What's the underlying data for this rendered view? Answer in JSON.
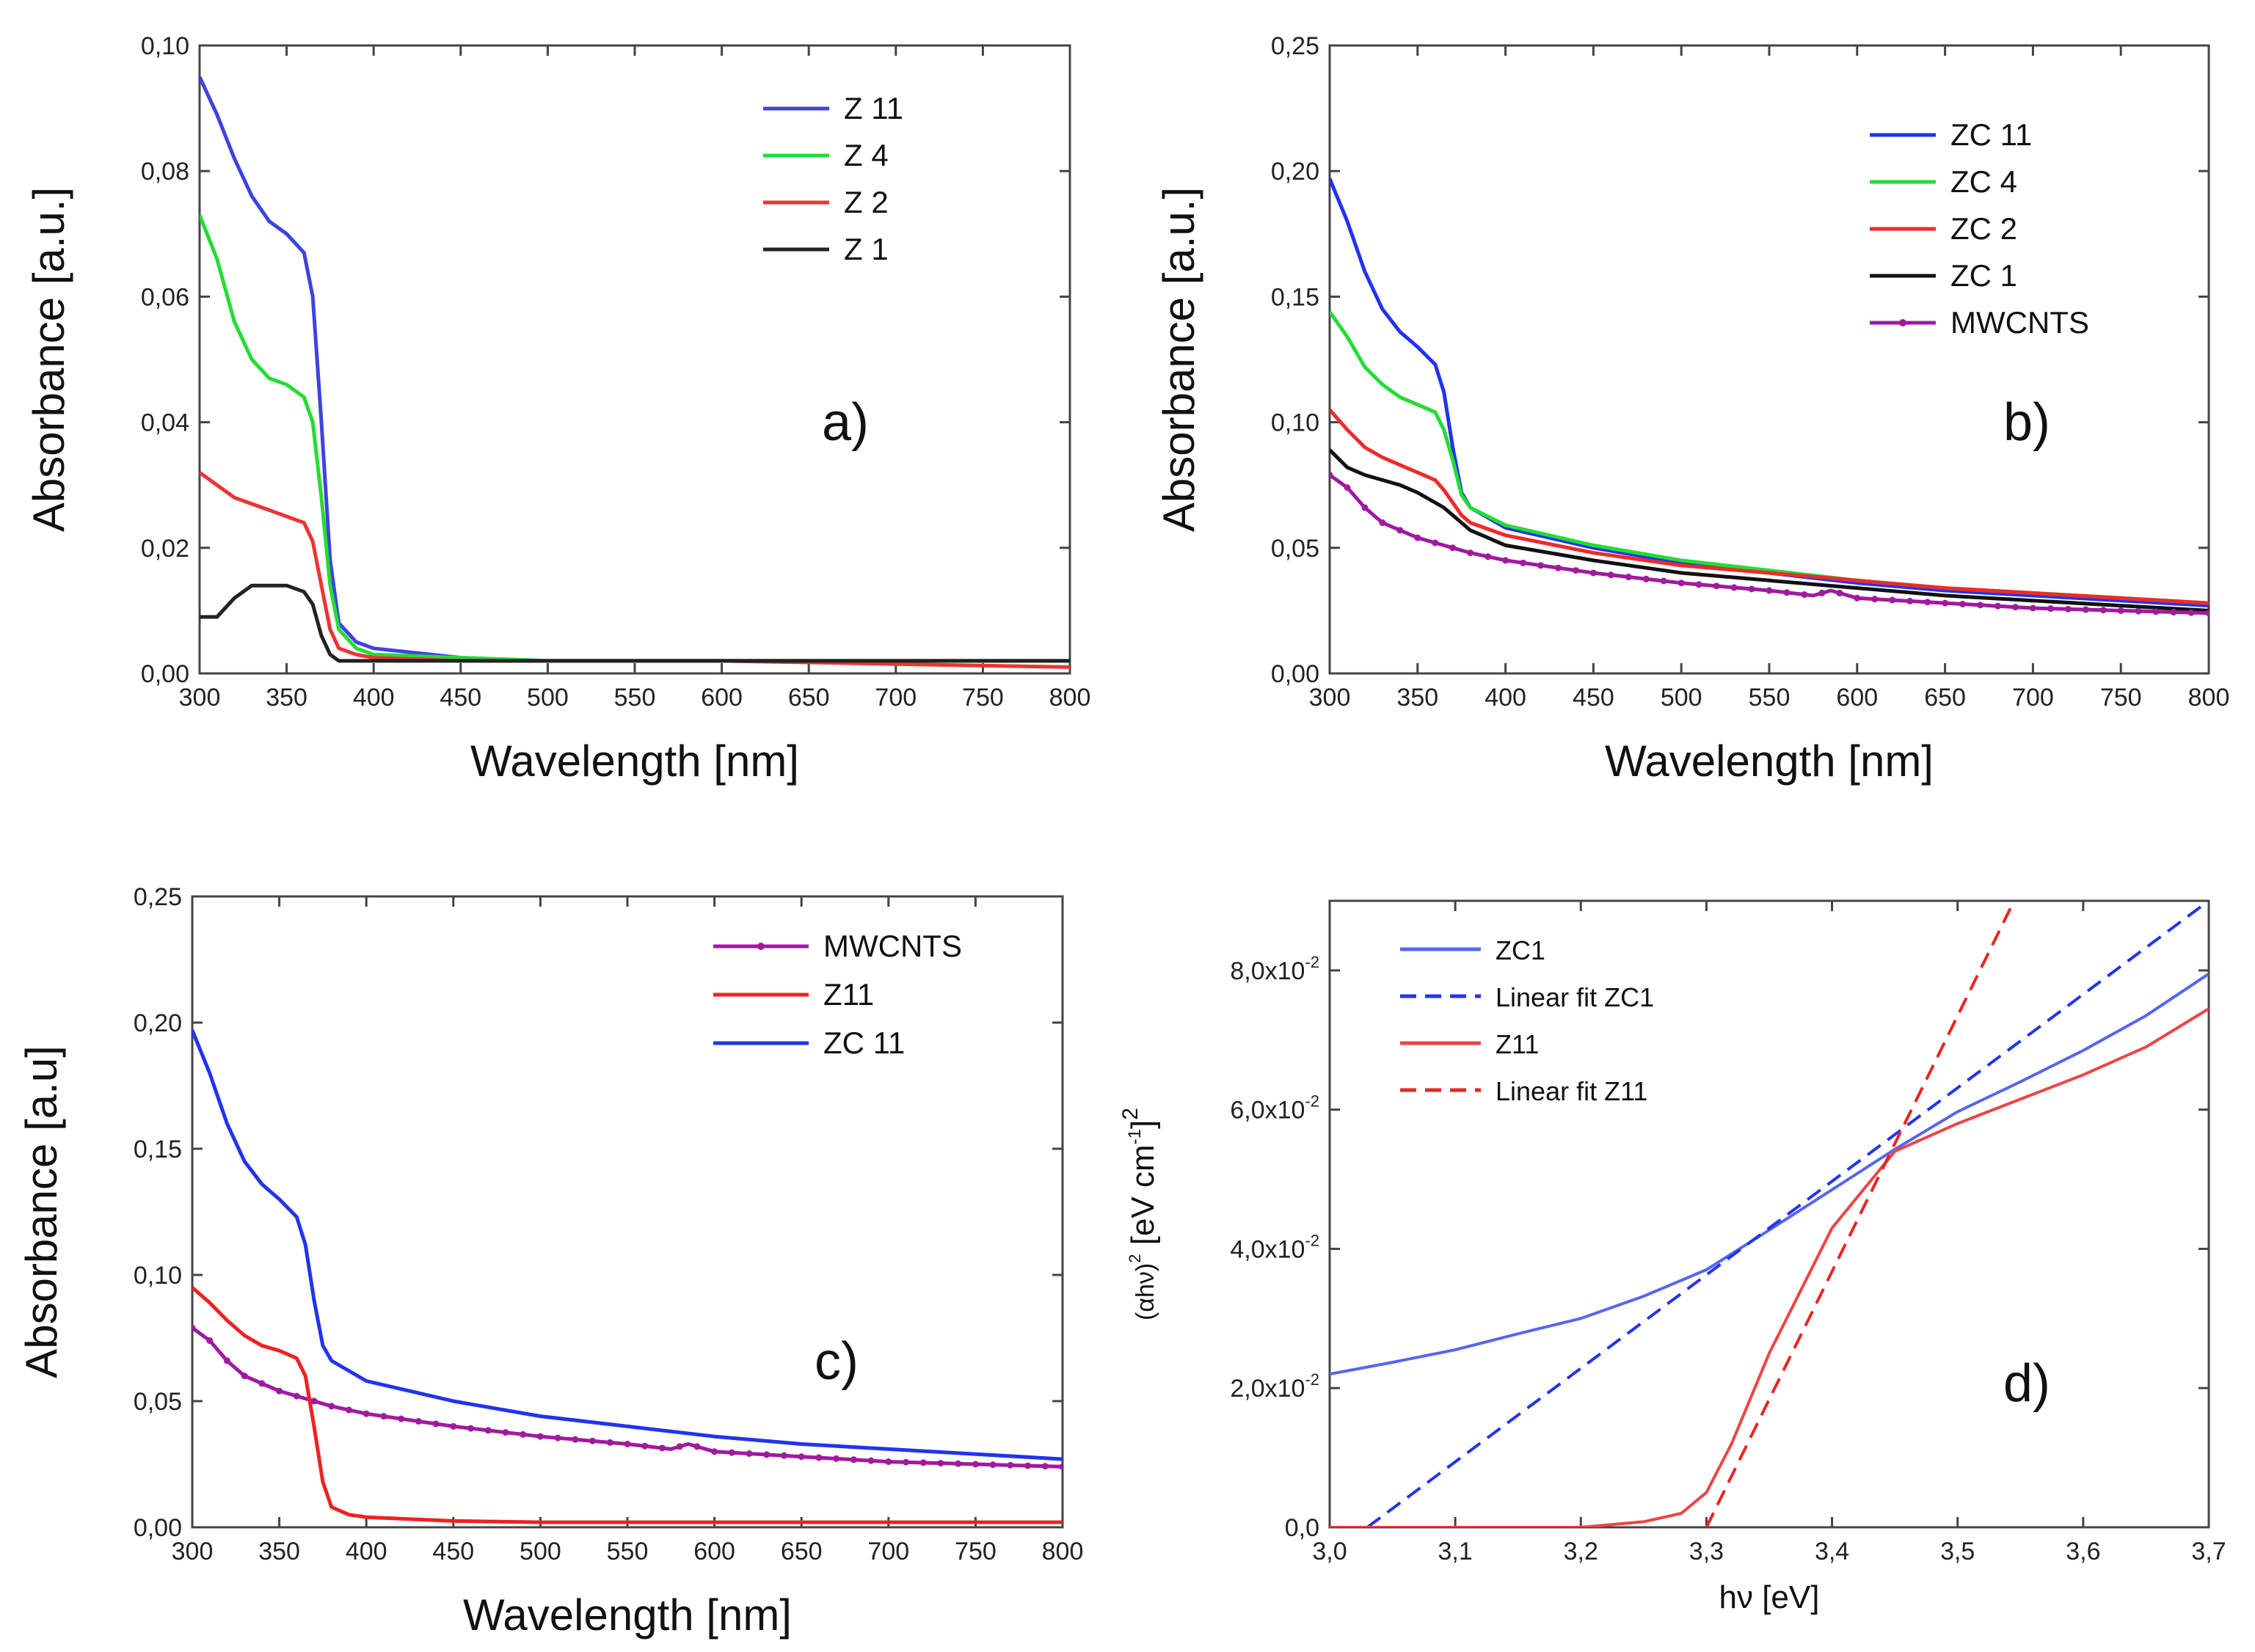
{
  "chart_data": [
    {
      "type": "line",
      "panel": "a)",
      "xlabel": "Wavelength [nm]",
      "ylabel": "Absorbance [a.u.]",
      "xlim": [
        300,
        800
      ],
      "ylim": [
        0,
        0.1
      ],
      "xticks": [
        "300",
        "350",
        "400",
        "450",
        "500",
        "550",
        "600",
        "650",
        "700",
        "750",
        "800"
      ],
      "yticks": [
        "0,00",
        "0,02",
        "0,04",
        "0,06",
        "0,08",
        "0,10"
      ],
      "legend_position": "top-right",
      "series": [
        {
          "name": "Z 11",
          "color": "#3d43e0",
          "x": [
            300,
            310,
            320,
            330,
            340,
            350,
            360,
            365,
            370,
            375,
            380,
            390,
            400,
            450,
            500,
            600,
            700,
            800
          ],
          "y": [
            0.095,
            0.089,
            0.082,
            0.076,
            0.072,
            0.07,
            0.067,
            0.06,
            0.04,
            0.018,
            0.008,
            0.005,
            0.004,
            0.0025,
            0.002,
            0.002,
            0.002,
            0.002
          ]
        },
        {
          "name": "Z 4",
          "color": "#22dd33",
          "x": [
            300,
            310,
            320,
            330,
            340,
            350,
            360,
            365,
            370,
            375,
            380,
            390,
            400,
            450,
            500,
            600,
            700,
            800
          ],
          "y": [
            0.073,
            0.066,
            0.056,
            0.05,
            0.047,
            0.046,
            0.044,
            0.04,
            0.028,
            0.014,
            0.007,
            0.004,
            0.003,
            0.0025,
            0.002,
            0.002,
            0.002,
            0.002
          ]
        },
        {
          "name": "Z 2",
          "color": "#ee3333",
          "x": [
            300,
            310,
            320,
            330,
            340,
            350,
            360,
            365,
            370,
            375,
            380,
            390,
            400,
            450,
            500,
            600,
            700,
            800
          ],
          "y": [
            0.032,
            0.03,
            0.028,
            0.027,
            0.026,
            0.025,
            0.024,
            0.021,
            0.014,
            0.007,
            0.004,
            0.003,
            0.0025,
            0.002,
            0.002,
            0.002,
            0.0015,
            0.001
          ]
        },
        {
          "name": "Z 1",
          "color": "#222222",
          "x": [
            300,
            310,
            320,
            330,
            340,
            350,
            360,
            365,
            370,
            375,
            380,
            390,
            400,
            450,
            500,
            600,
            700,
            800
          ],
          "y": [
            0.009,
            0.009,
            0.012,
            0.014,
            0.014,
            0.014,
            0.013,
            0.011,
            0.006,
            0.003,
            0.002,
            0.002,
            0.002,
            0.002,
            0.002,
            0.002,
            0.002,
            0.002
          ]
        }
      ]
    },
    {
      "type": "line",
      "panel": "b)",
      "xlabel": "Wavelength [nm]",
      "ylabel": "Absorbance [a.u.]",
      "xlim": [
        300,
        800
      ],
      "ylim": [
        0,
        0.25
      ],
      "xticks": [
        "300",
        "350",
        "400",
        "450",
        "500",
        "550",
        "600",
        "650",
        "700",
        "750",
        "800"
      ],
      "yticks": [
        "0,00",
        "0,05",
        "0,10",
        "0,15",
        "0,20",
        "0,25"
      ],
      "legend_position": "top-right",
      "series": [
        {
          "name": "ZC 11",
          "color": "#2233ee",
          "x": [
            300,
            310,
            320,
            330,
            340,
            350,
            360,
            365,
            370,
            375,
            380,
            400,
            450,
            500,
            550,
            600,
            650,
            700,
            750,
            800
          ],
          "y": [
            0.197,
            0.18,
            0.16,
            0.145,
            0.136,
            0.13,
            0.123,
            0.112,
            0.09,
            0.072,
            0.066,
            0.058,
            0.05,
            0.044,
            0.04,
            0.036,
            0.033,
            0.031,
            0.029,
            0.027
          ]
        },
        {
          "name": "ZC 4",
          "color": "#22dd33",
          "x": [
            300,
            310,
            320,
            330,
            340,
            350,
            360,
            365,
            370,
            375,
            380,
            400,
            450,
            500,
            550,
            600,
            650,
            700,
            750,
            800
          ],
          "y": [
            0.144,
            0.134,
            0.122,
            0.115,
            0.11,
            0.107,
            0.104,
            0.097,
            0.085,
            0.071,
            0.066,
            0.059,
            0.051,
            0.045,
            0.041,
            0.037,
            0.034,
            0.032,
            0.03,
            0.028
          ]
        },
        {
          "name": "ZC 2",
          "color": "#ee2a2a",
          "x": [
            300,
            310,
            320,
            330,
            340,
            350,
            360,
            365,
            370,
            375,
            380,
            400,
            450,
            500,
            550,
            600,
            650,
            700,
            750,
            800
          ],
          "y": [
            0.105,
            0.097,
            0.09,
            0.086,
            0.083,
            0.08,
            0.077,
            0.073,
            0.068,
            0.063,
            0.06,
            0.055,
            0.048,
            0.043,
            0.04,
            0.037,
            0.034,
            0.032,
            0.03,
            0.028
          ]
        },
        {
          "name": "ZC 1",
          "color": "#111111",
          "x": [
            300,
            310,
            320,
            330,
            340,
            350,
            360,
            365,
            370,
            375,
            380,
            400,
            450,
            500,
            550,
            600,
            650,
            700,
            750,
            800
          ],
          "y": [
            0.089,
            0.082,
            0.079,
            0.077,
            0.075,
            0.072,
            0.068,
            0.066,
            0.063,
            0.06,
            0.057,
            0.051,
            0.045,
            0.04,
            0.037,
            0.034,
            0.031,
            0.029,
            0.027,
            0.025
          ]
        },
        {
          "name": "MWCNTS",
          "color": "#a01aa0",
          "x": [
            300,
            310,
            320,
            330,
            340,
            350,
            360,
            370,
            380,
            400,
            450,
            500,
            550,
            575,
            585,
            600,
            650,
            700,
            750,
            800
          ],
          "y": [
            0.079,
            0.074,
            0.066,
            0.06,
            0.057,
            0.054,
            0.052,
            0.05,
            0.048,
            0.045,
            0.04,
            0.036,
            0.033,
            0.031,
            0.033,
            0.03,
            0.028,
            0.026,
            0.025,
            0.024
          ]
        }
      ]
    },
    {
      "type": "line",
      "panel": "c)",
      "xlabel": "Wavelength [nm]",
      "ylabel": "Absorbance [a.u]",
      "xlim": [
        300,
        800
      ],
      "ylim": [
        0,
        0.25
      ],
      "xticks": [
        "300",
        "350",
        "400",
        "450",
        "500",
        "550",
        "600",
        "650",
        "700",
        "750",
        "800"
      ],
      "yticks": [
        "0,00",
        "0,05",
        "0,10",
        "0,15",
        "0,20",
        "0,25"
      ],
      "legend_position": "top-right",
      "series": [
        {
          "name": "MWCNTS",
          "color": "#a01aa0",
          "x": [
            300,
            310,
            320,
            330,
            340,
            350,
            360,
            370,
            380,
            400,
            450,
            500,
            550,
            575,
            585,
            600,
            650,
            700,
            750,
            800
          ],
          "y": [
            0.079,
            0.074,
            0.066,
            0.06,
            0.057,
            0.054,
            0.052,
            0.05,
            0.048,
            0.045,
            0.04,
            0.036,
            0.033,
            0.031,
            0.033,
            0.03,
            0.028,
            0.026,
            0.025,
            0.024
          ]
        },
        {
          "name": "Z11",
          "color": "#ee2222",
          "x": [
            300,
            310,
            320,
            330,
            340,
            350,
            360,
            365,
            370,
            375,
            380,
            390,
            400,
            450,
            500,
            600,
            700,
            800
          ],
          "y": [
            0.095,
            0.089,
            0.082,
            0.076,
            0.072,
            0.07,
            0.067,
            0.06,
            0.04,
            0.018,
            0.008,
            0.005,
            0.004,
            0.0025,
            0.002,
            0.002,
            0.002,
            0.002
          ]
        },
        {
          "name": "ZC 11",
          "color": "#2233ee",
          "x": [
            300,
            310,
            320,
            330,
            340,
            350,
            360,
            365,
            370,
            375,
            380,
            400,
            450,
            500,
            550,
            600,
            650,
            700,
            750,
            800
          ],
          "y": [
            0.197,
            0.18,
            0.16,
            0.145,
            0.136,
            0.13,
            0.123,
            0.112,
            0.09,
            0.072,
            0.066,
            0.058,
            0.05,
            0.044,
            0.04,
            0.036,
            0.033,
            0.031,
            0.029,
            0.027
          ]
        }
      ]
    },
    {
      "type": "line",
      "panel": "d)",
      "xlabel": "hν [eV]",
      "ylabel_main": "(αhν)",
      "ylabel_sup": "2",
      "ylabel_units": "[eV cm",
      "ylabel_units_sup": "-1",
      "ylabel_units_end": "]",
      "ylabel_units_sup2": "2",
      "xlim": [
        3.0,
        3.7
      ],
      "ylim": [
        0,
        0.09
      ],
      "xticks": [
        "3,0",
        "3,1",
        "3,2",
        "3,3",
        "3,4",
        "3,5",
        "3,6",
        "3,7"
      ],
      "yticks": [
        {
          "base": "0,0",
          "exp": ""
        },
        {
          "base": "2,0x10",
          "exp": "-2"
        },
        {
          "base": "4,0x10",
          "exp": "-2"
        },
        {
          "base": "6,0x10",
          "exp": "-2"
        },
        {
          "base": "8,0x10",
          "exp": "-2"
        }
      ],
      "ytick_values": [
        0,
        0.02,
        0.04,
        0.06,
        0.08
      ],
      "legend_position": "top-left",
      "series": [
        {
          "name": "ZC1",
          "color": "#5566ee",
          "dash": "solid",
          "x": [
            3.0,
            3.05,
            3.1,
            3.15,
            3.2,
            3.25,
            3.3,
            3.35,
            3.4,
            3.45,
            3.5,
            3.55,
            3.6,
            3.65,
            3.7
          ],
          "y": [
            0.022,
            0.0237,
            0.0255,
            0.0278,
            0.03,
            0.0332,
            0.037,
            0.0427,
            0.0485,
            0.0543,
            0.0597,
            0.064,
            0.0685,
            0.0735,
            0.0795
          ]
        },
        {
          "name": "Linear fit ZC1",
          "color": "#2233ee",
          "dash": "dashed",
          "x": [
            3.03,
            3.7
          ],
          "y": [
            0.0,
            0.09
          ]
        },
        {
          "name": "Z11",
          "color": "#ee4444",
          "dash": "solid",
          "x": [
            3.0,
            3.1,
            3.2,
            3.25,
            3.28,
            3.3,
            3.32,
            3.35,
            3.4,
            3.45,
            3.5,
            3.55,
            3.6,
            3.65,
            3.7
          ],
          "y": [
            0.0,
            0.0,
            0.0,
            0.0008,
            0.002,
            0.005,
            0.012,
            0.025,
            0.043,
            0.054,
            0.058,
            0.0615,
            0.065,
            0.069,
            0.0745
          ]
        },
        {
          "name": "Linear fit Z11",
          "color": "#ee2222",
          "dash": "dashed",
          "x": [
            3.3,
            3.545
          ],
          "y": [
            0.0,
            0.09
          ]
        }
      ]
    }
  ]
}
